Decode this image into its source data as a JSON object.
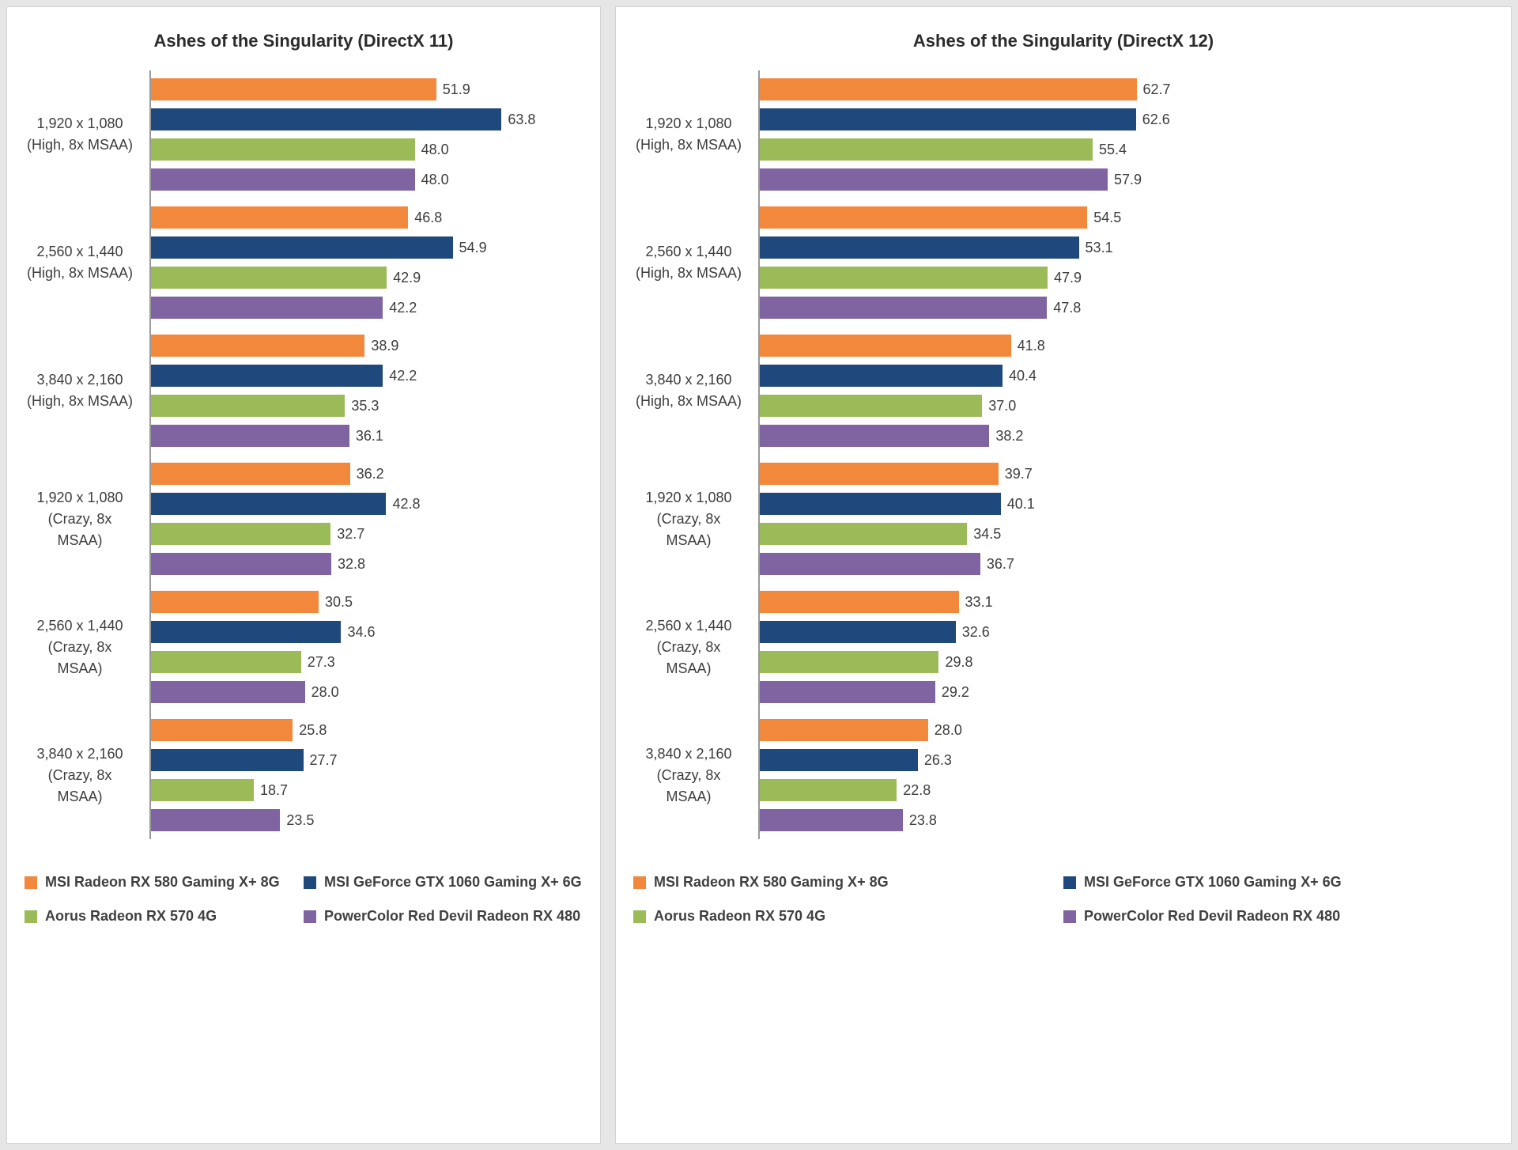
{
  "chart_data": [
    {
      "type": "bar",
      "orientation": "horizontal",
      "title": "Ashes of the Singularity (DirectX 11)",
      "xlabel": "",
      "ylabel": "",
      "xlim": [
        0,
        80
      ],
      "grid": false,
      "value_labels": true,
      "legend_position": "bottom",
      "categories": [
        "1,920 x 1,080\n(High, 8x MSAA)",
        "2,560 x 1,440\n(High, 8x MSAA)",
        "3,840 x 2,160\n(High, 8x MSAA)",
        "1,920 x 1,080\n(Crazy, 8x\nMSAA)",
        "2,560 x 1,440\n(Crazy, 8x\nMSAA)",
        "3,840 x 2,160\n(Crazy, 8x\nMSAA)"
      ],
      "series": [
        {
          "name": "MSI Radeon RX 580 Gaming X+ 8G",
          "color": "#F1883C",
          "values": [
            51.9,
            46.8,
            38.9,
            36.2,
            30.5,
            25.8
          ]
        },
        {
          "name": "MSI GeForce GTX 1060 Gaming X+ 6G",
          "color": "#1F497D",
          "values": [
            63.8,
            54.9,
            42.2,
            42.8,
            34.6,
            27.7
          ]
        },
        {
          "name": "Aorus Radeon RX 570 4G",
          "color": "#9BBB59",
          "values": [
            48.0,
            42.9,
            35.3,
            32.7,
            27.3,
            18.7
          ]
        },
        {
          "name": "PowerColor Red Devil Radeon RX 480",
          "color": "#8064A2",
          "values": [
            48.0,
            42.2,
            36.1,
            32.8,
            28.0,
            23.5
          ]
        }
      ]
    },
    {
      "type": "bar",
      "orientation": "horizontal",
      "title": "Ashes of the Singularity (DirectX 12)",
      "xlabel": "",
      "ylabel": "",
      "xlim": [
        0,
        80
      ],
      "grid": false,
      "value_labels": true,
      "legend_position": "bottom",
      "categories": [
        "1,920 x 1,080\n(High, 8x MSAA)",
        "2,560 x 1,440\n(High, 8x MSAA)",
        "3,840 x 2,160\n(High, 8x MSAA)",
        "1,920 x 1,080\n(Crazy, 8x\nMSAA)",
        "2,560 x 1,440\n(Crazy, 8x\nMSAA)",
        "3,840 x 2,160\n(Crazy, 8x\nMSAA)"
      ],
      "series": [
        {
          "name": "MSI Radeon RX 580 Gaming X+ 8G",
          "color": "#F1883C",
          "values": [
            62.7,
            54.5,
            41.8,
            39.7,
            33.1,
            28.0
          ]
        },
        {
          "name": "MSI GeForce GTX 1060 Gaming X+ 6G",
          "color": "#1F497D",
          "values": [
            62.6,
            53.1,
            40.4,
            40.1,
            32.6,
            26.3
          ]
        },
        {
          "name": "Aorus Radeon RX 570 4G",
          "color": "#9BBB59",
          "values": [
            55.4,
            47.9,
            37.0,
            34.5,
            29.8,
            22.8
          ]
        },
        {
          "name": "PowerColor Red Devil Radeon RX 480",
          "color": "#8064A2",
          "values": [
            57.9,
            47.8,
            38.2,
            36.7,
            29.2,
            23.8
          ]
        }
      ]
    }
  ]
}
